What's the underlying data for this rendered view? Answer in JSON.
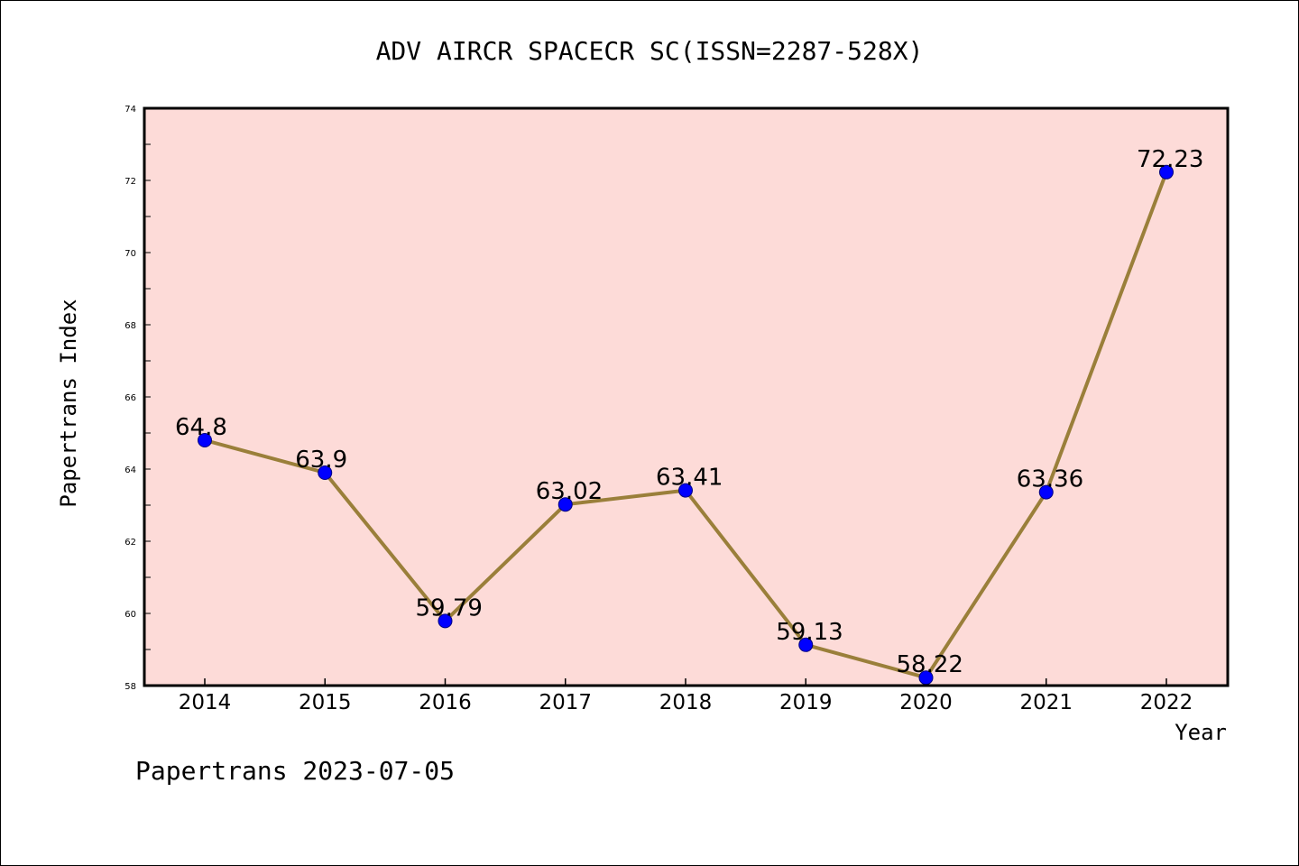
{
  "chart_data": {
    "type": "line",
    "title": "ADV AIRCR SPACECR SC(ISSN=2287-528X)",
    "xlabel": "Year",
    "ylabel": "Papertrans Index",
    "categories": [
      "2014",
      "2015",
      "2016",
      "2017",
      "2018",
      "2019",
      "2020",
      "2021",
      "2022"
    ],
    "values": [
      64.8,
      63.9,
      59.79,
      63.02,
      63.41,
      59.13,
      58.22,
      63.36,
      72.23
    ],
    "data_labels": [
      "64.8",
      "63.9",
      "59.79",
      "63.02",
      "63.41",
      "59.13",
      "58.22",
      "63.36",
      "72.23"
    ],
    "ylim": [
      58,
      74
    ],
    "yticks": [
      "58",
      "60",
      "62",
      "64",
      "66",
      "68",
      "70",
      "72",
      "74"
    ],
    "grid": false,
    "legend": "none"
  },
  "footer": "Papertrans 2023-07-05",
  "colors": {
    "plot_background": "#fddbd8",
    "line": "#9a7f3a",
    "marker_fill": "#0000ff",
    "marker_edge": "#000080"
  }
}
